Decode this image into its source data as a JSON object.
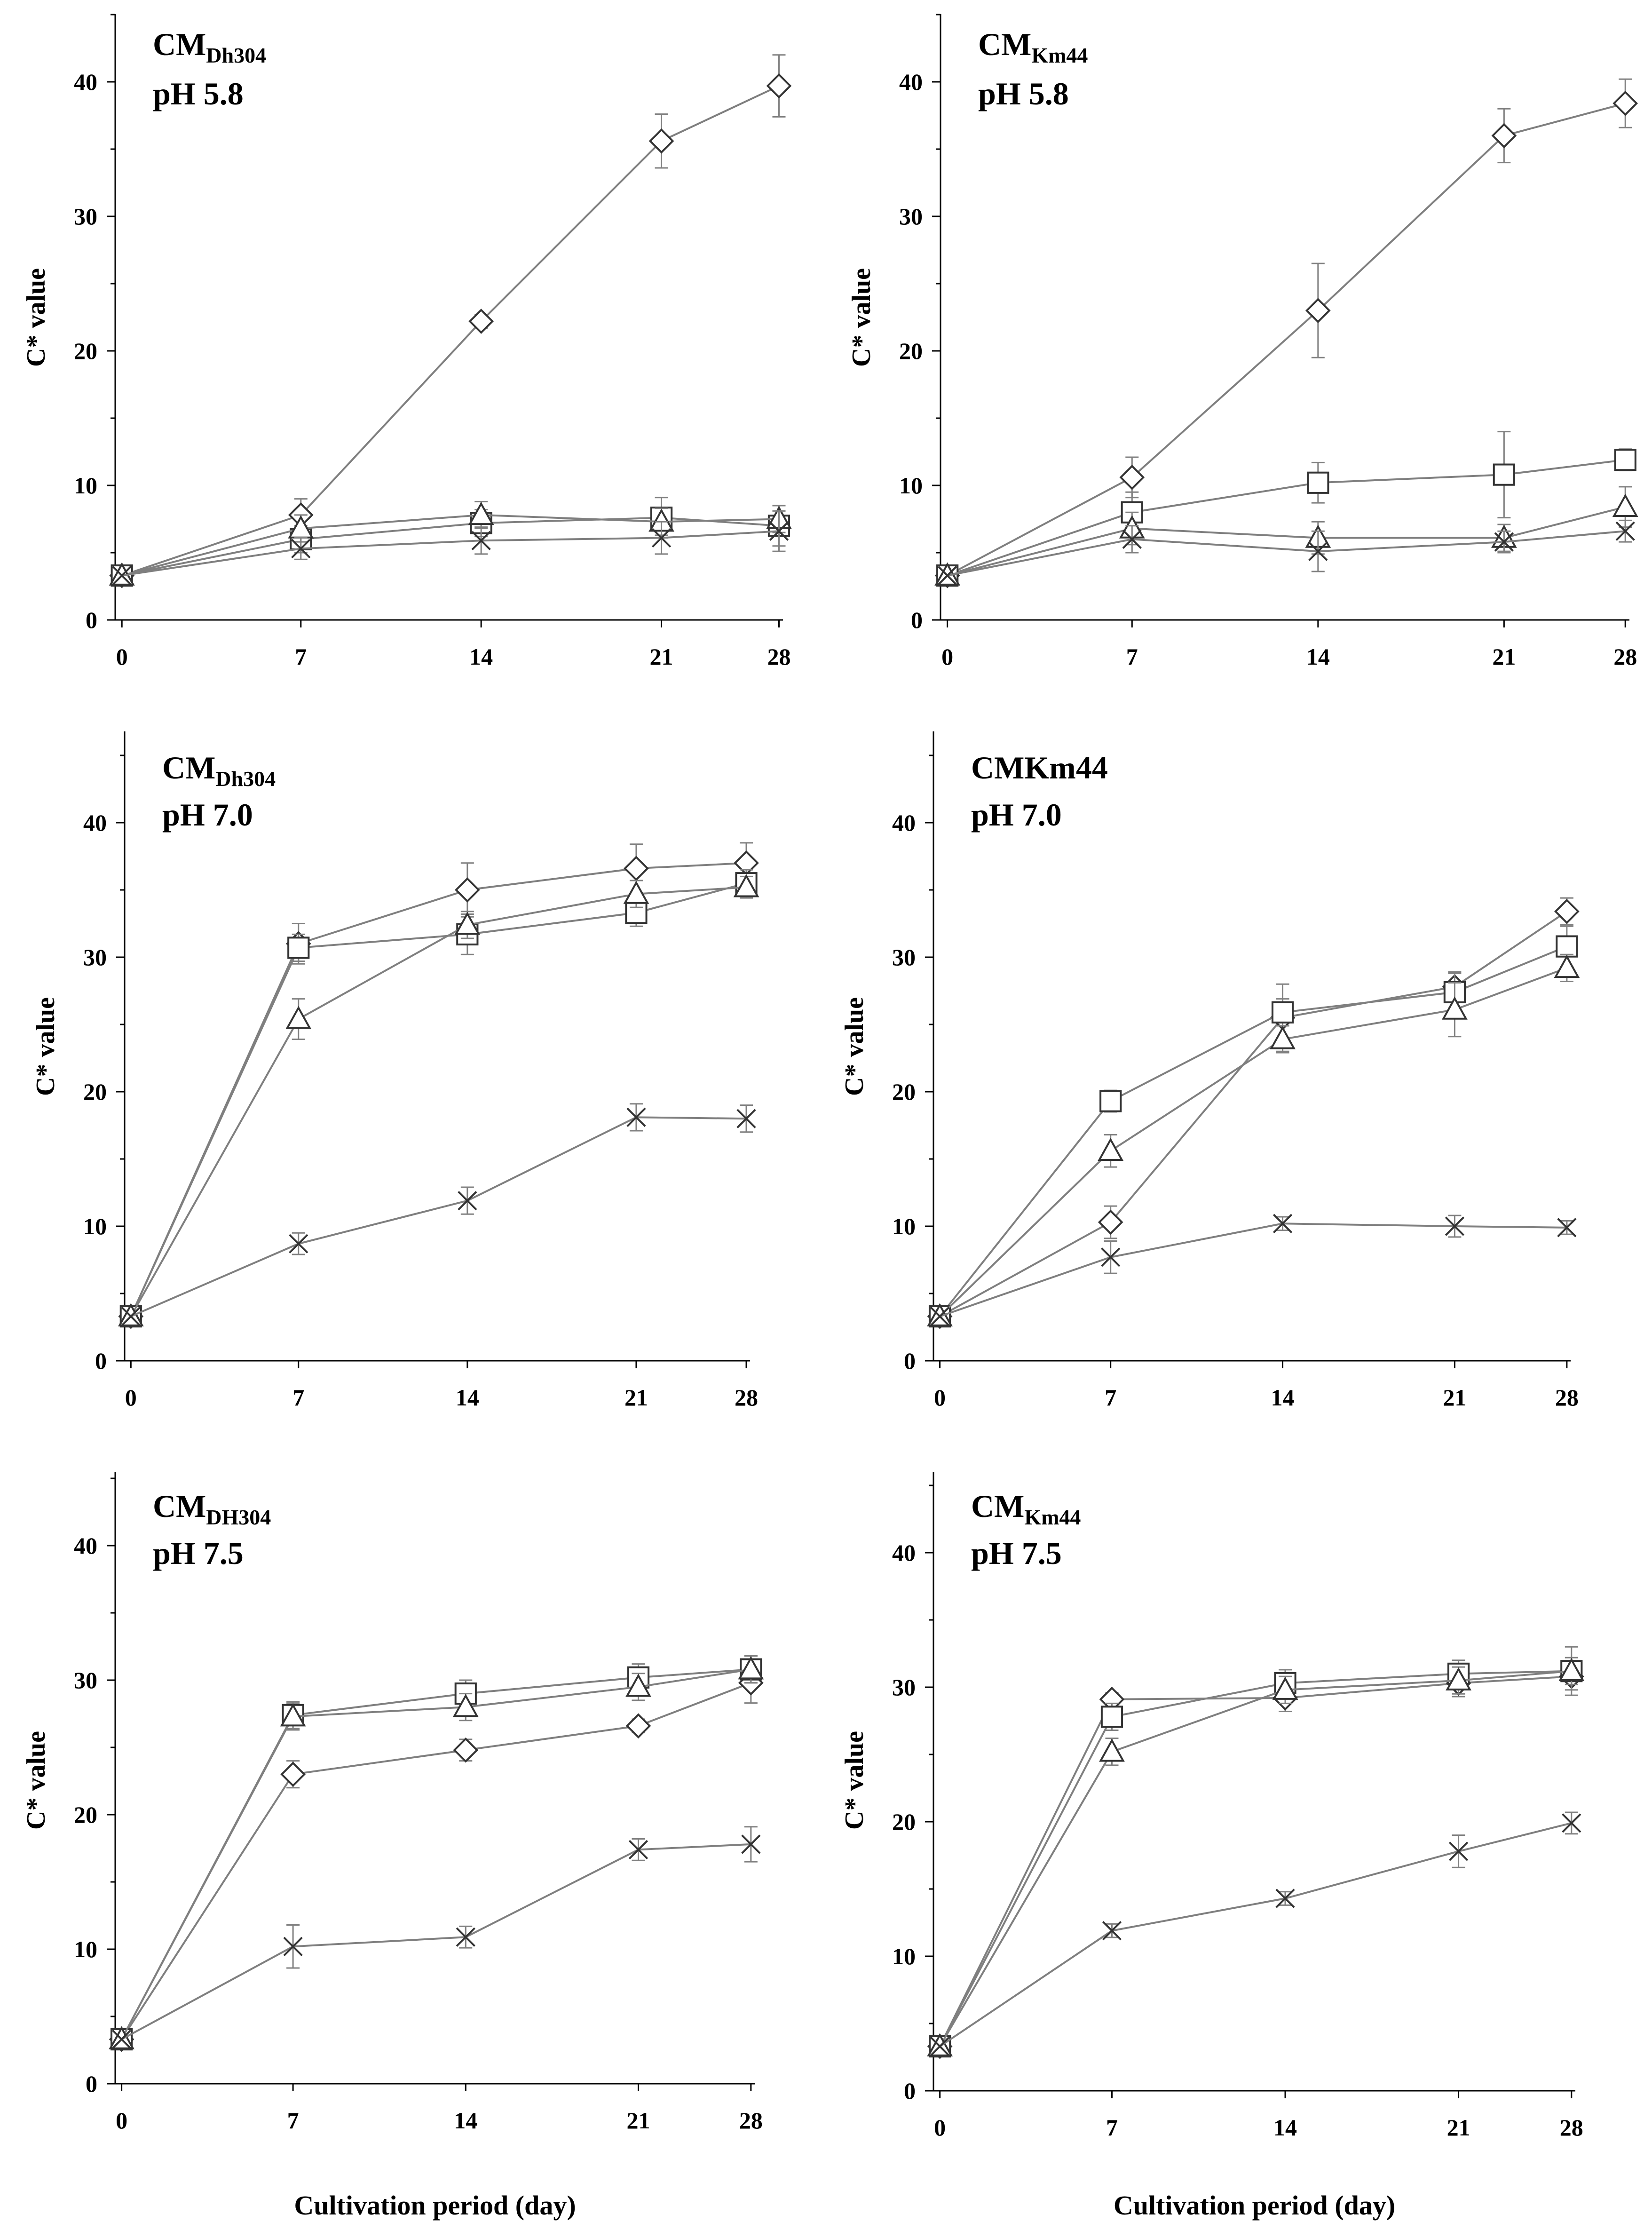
{
  "colors": {
    "axis": "#000000",
    "series_line": "#7f7f7f",
    "marker": "#333333",
    "errorbar": "#808080"
  },
  "chart_data": [
    {
      "type": "line",
      "strain": "CM",
      "strain_sub": "Dh304",
      "ph_label": "pH 5.8",
      "xlabel": "",
      "ylabel": "C* value",
      "x": [
        0,
        7,
        14,
        21,
        28
      ],
      "x_tick_labels": [
        "0",
        "7",
        "14",
        "21",
        "28"
      ],
      "ylim": [
        0,
        45
      ],
      "y_ticks": [
        0,
        10,
        20,
        30,
        40
      ],
      "y_tick_labels": [
        "0",
        "10",
        "20",
        "30",
        "40"
      ],
      "series": [
        {
          "marker": "diamond",
          "values": [
            3.3,
            7.8,
            22.2,
            35.6,
            39.7
          ],
          "errors": [
            0,
            1.2,
            0.5,
            2.0,
            2.3
          ]
        },
        {
          "marker": "square",
          "values": [
            3.3,
            6.0,
            7.2,
            7.6,
            7.0
          ],
          "errors": [
            0,
            1.0,
            1.0,
            1.5,
            1.5
          ]
        },
        {
          "marker": "triangle",
          "values": [
            3.3,
            6.8,
            7.8,
            7.3,
            7.5
          ],
          "errors": [
            0,
            1.0,
            1.0,
            1.0,
            1.0
          ]
        },
        {
          "marker": "cross",
          "values": [
            3.3,
            5.3,
            5.9,
            6.1,
            6.6
          ],
          "errors": [
            0,
            0.8,
            1.0,
            1.2,
            1.5
          ]
        }
      ]
    },
    {
      "type": "line",
      "strain": "CM",
      "strain_sub": "Km44",
      "ph_label": "pH 5.8",
      "xlabel": "",
      "ylabel": "C* value",
      "x": [
        0,
        7,
        14,
        21,
        28
      ],
      "x_tick_labels": [
        "0",
        "7",
        "14",
        "21",
        "28"
      ],
      "ylim": [
        0,
        45
      ],
      "y_ticks": [
        0,
        10,
        20,
        30,
        40
      ],
      "y_tick_labels": [
        "0",
        "10",
        "20",
        "30",
        "40"
      ],
      "series": [
        {
          "marker": "diamond",
          "values": [
            3.3,
            10.6,
            23.0,
            36.0,
            38.4
          ],
          "errors": [
            0,
            1.5,
            3.5,
            2.0,
            1.8
          ]
        },
        {
          "marker": "square",
          "values": [
            3.3,
            8.0,
            10.2,
            10.8,
            11.9
          ],
          "errors": [
            0,
            1.5,
            1.5,
            3.2,
            0.8
          ]
        },
        {
          "marker": "triangle",
          "values": [
            3.3,
            6.8,
            6.1,
            6.1,
            8.4
          ],
          "errors": [
            0,
            1.2,
            1.2,
            1.0,
            1.5
          ]
        },
        {
          "marker": "cross",
          "values": [
            3.3,
            6.0,
            5.1,
            5.8,
            6.6
          ],
          "errors": [
            0,
            1.0,
            1.5,
            0.8,
            0.8
          ]
        }
      ]
    },
    {
      "type": "line",
      "strain": "CM",
      "strain_sub": "Dh304",
      "ph_label": "pH 7.0",
      "xlabel": "",
      "ylabel": "C* value",
      "x": [
        0,
        7,
        14,
        21,
        28
      ],
      "x_tick_labels": [
        "0",
        "7",
        "14",
        "21",
        "28"
      ],
      "ylim": [
        0,
        45
      ],
      "y_ticks": [
        0,
        10,
        20,
        30,
        40
      ],
      "y_tick_labels": [
        "0",
        "10",
        "20",
        "30",
        "40"
      ],
      "series": [
        {
          "marker": "diamond",
          "values": [
            3.3,
            31.0,
            35.0,
            36.6,
            37.0
          ],
          "errors": [
            0,
            1.5,
            2.0,
            1.8,
            1.5
          ]
        },
        {
          "marker": "square",
          "values": [
            3.3,
            30.7,
            31.7,
            33.3,
            35.5
          ],
          "errors": [
            0,
            1.0,
            1.5,
            1.0,
            1.0
          ]
        },
        {
          "marker": "triangle",
          "values": [
            3.3,
            25.4,
            32.4,
            34.7,
            35.2
          ],
          "errors": [
            0,
            1.5,
            1.0,
            1.0,
            0.8
          ]
        },
        {
          "marker": "cross",
          "values": [
            3.3,
            8.7,
            11.9,
            18.1,
            18.0
          ],
          "errors": [
            0,
            0.8,
            1.0,
            1.0,
            1.0
          ]
        }
      ]
    },
    {
      "type": "line",
      "strain": "CMKm44",
      "strain_sub": "",
      "ph_label": "pH 7.0",
      "xlabel": "",
      "ylabel": "C* value",
      "x": [
        0,
        7,
        14,
        21,
        28
      ],
      "x_tick_labels": [
        "0",
        "7",
        "14",
        "21",
        "28"
      ],
      "ylim": [
        0,
        45
      ],
      "y_ticks": [
        0,
        10,
        20,
        30,
        40
      ],
      "y_tick_labels": [
        "0",
        "10",
        "20",
        "30",
        "40"
      ],
      "series": [
        {
          "marker": "diamond",
          "values": [
            3.3,
            10.3,
            25.5,
            27.8,
            33.4
          ],
          "errors": [
            0,
            1.2,
            2.5,
            1.0,
            1.0
          ]
        },
        {
          "marker": "square",
          "values": [
            3.3,
            19.3,
            25.9,
            27.4,
            30.8
          ],
          "errors": [
            0,
            0.8,
            1.0,
            1.5,
            1.5
          ]
        },
        {
          "marker": "triangle",
          "values": [
            3.3,
            15.6,
            23.9,
            26.1,
            29.2
          ],
          "errors": [
            0,
            1.2,
            1.0,
            2.0,
            1.0
          ]
        },
        {
          "marker": "cross",
          "values": [
            3.3,
            7.7,
            10.2,
            10.0,
            9.9
          ],
          "errors": [
            0,
            1.2,
            0.5,
            0.8,
            0.5
          ]
        }
      ]
    },
    {
      "type": "line",
      "strain": "CM",
      "strain_sub": "DH304",
      "ph_label": "pH 7.5",
      "xlabel": "Cultivation period (day)",
      "ylabel": "C* value",
      "x": [
        0,
        7,
        14,
        21,
        28
      ],
      "x_tick_labels": [
        "0",
        "7",
        "14",
        "21",
        "28"
      ],
      "ylim": [
        0,
        45
      ],
      "y_ticks": [
        0,
        10,
        20,
        30,
        40
      ],
      "y_tick_labels": [
        "0",
        "10",
        "20",
        "30",
        "40"
      ],
      "series": [
        {
          "marker": "diamond",
          "values": [
            3.3,
            23.0,
            24.8,
            26.6,
            29.8
          ],
          "errors": [
            0,
            1.0,
            0.8,
            0.5,
            1.5
          ]
        },
        {
          "marker": "square",
          "values": [
            3.3,
            27.4,
            29.0,
            30.2,
            30.8
          ],
          "errors": [
            0,
            1.0,
            1.0,
            1.0,
            1.0
          ]
        },
        {
          "marker": "triangle",
          "values": [
            3.3,
            27.3,
            28.0,
            29.5,
            30.8
          ],
          "errors": [
            0,
            1.0,
            1.0,
            1.0,
            1.0
          ]
        },
        {
          "marker": "cross",
          "values": [
            3.3,
            10.2,
            10.9,
            17.4,
            17.8
          ],
          "errors": [
            0,
            1.6,
            0.8,
            0.8,
            1.3
          ]
        }
      ]
    },
    {
      "type": "line",
      "strain": "CM",
      "strain_sub": "Km44",
      "ph_label": "pH 7.5",
      "xlabel": "Cultivation period (day)",
      "ylabel": "C* value",
      "x": [
        0,
        7,
        14,
        21,
        28
      ],
      "x_tick_labels": [
        "0",
        "7",
        "14",
        "21",
        "28"
      ],
      "ylim": [
        0,
        45
      ],
      "y_ticks": [
        0,
        10,
        20,
        30,
        40
      ],
      "y_tick_labels": [
        "0",
        "10",
        "20",
        "30",
        "40"
      ],
      "series": [
        {
          "marker": "diamond",
          "values": [
            3.3,
            29.1,
            29.2,
            30.3,
            30.8
          ],
          "errors": [
            0,
            0.5,
            1.0,
            1.0,
            1.0
          ]
        },
        {
          "marker": "square",
          "values": [
            3.3,
            27.8,
            30.3,
            31.0,
            31.2
          ],
          "errors": [
            0,
            1.0,
            1.0,
            1.0,
            1.8
          ]
        },
        {
          "marker": "triangle",
          "values": [
            3.3,
            25.2,
            29.8,
            30.5,
            31.2
          ],
          "errors": [
            0,
            1.0,
            1.0,
            1.0,
            1.0
          ]
        },
        {
          "marker": "cross",
          "values": [
            3.3,
            11.9,
            14.3,
            17.8,
            19.9
          ],
          "errors": [
            0,
            0.5,
            0.5,
            1.2,
            0.8
          ]
        }
      ]
    }
  ]
}
